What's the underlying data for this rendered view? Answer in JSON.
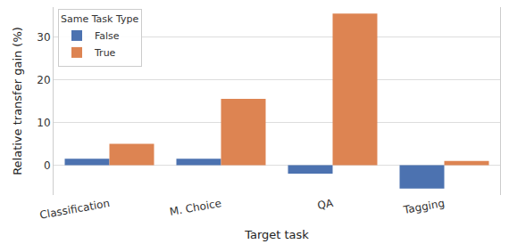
{
  "chart_data": {
    "type": "bar",
    "categories": [
      "Classification",
      "M. Choice",
      "QA",
      "Tagging"
    ],
    "series": [
      {
        "name": "False",
        "color": "#4c72b0",
        "values": [
          1.5,
          1.5,
          -2.0,
          -5.5
        ]
      },
      {
        "name": "True",
        "color": "#dd8452",
        "values": [
          5.0,
          15.5,
          35.5,
          1.0
        ]
      }
    ],
    "x_label": "Target task",
    "y_label": "Relative transfer gain (%)",
    "legend_title": "Same Task Type",
    "legend": "upper left",
    "ylim": [
      -7,
      37
    ],
    "yticks": [
      0,
      10,
      20,
      30
    ],
    "grid": true
  }
}
